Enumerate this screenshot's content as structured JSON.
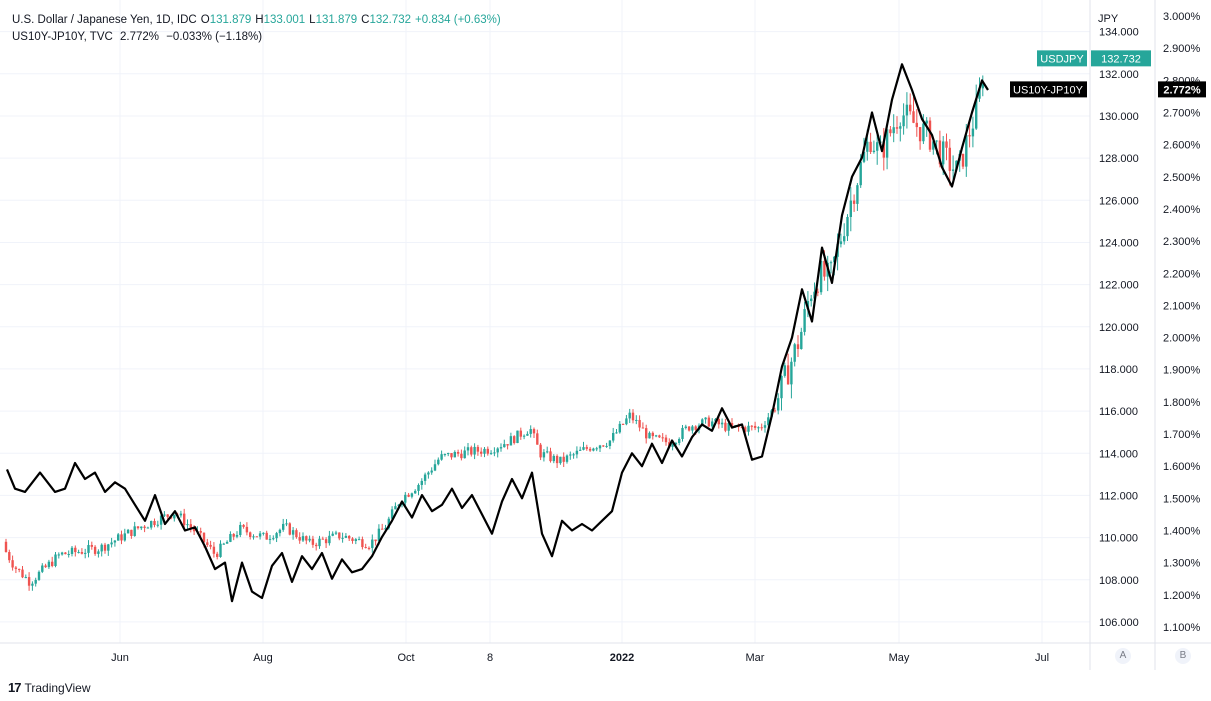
{
  "legend": {
    "usdjpy": {
      "title": "U.S. Dollar / Japanese Yen, 1D, IDC",
      "o_label": "O",
      "o": "131.879",
      "h_label": "H",
      "h": "133.001",
      "l_label": "L",
      "l": "131.879",
      "c_label": "C",
      "c": "132.732",
      "change": "+0.834 (+0.63%)"
    },
    "yield": {
      "title": "US10Y-JP10Y, TVC",
      "value": "2.772%",
      "change": "−0.033% (−1.18%)"
    }
  },
  "colors": {
    "up": "#26a69a",
    "down": "#ef5350",
    "line": "#000000",
    "grid": "#f0f3fa"
  },
  "footer": {
    "brand": "TradingView",
    "logo": "17"
  },
  "scale_buttons": [
    "A",
    "B"
  ],
  "chart_data": {
    "type": "candlestick+line",
    "x_ticks": [
      "Jun",
      "Aug",
      "Oct",
      "8",
      "2022",
      "Mar",
      "May",
      "Jul"
    ],
    "left_axis": {
      "unit": "JPY",
      "ticks": [
        "106.000",
        "108.000",
        "110.000",
        "112.000",
        "114.000",
        "116.000",
        "118.000",
        "120.000",
        "122.000",
        "124.000",
        "126.000",
        "128.000",
        "130.000",
        "132.000",
        "134.000"
      ],
      "range": [
        105,
        135.5
      ]
    },
    "right_axis": {
      "ticks": [
        "1.100%",
        "1.200%",
        "1.300%",
        "1.400%",
        "1.500%",
        "1.600%",
        "1.700%",
        "1.800%",
        "1.900%",
        "2.000%",
        "2.100%",
        "2.200%",
        "2.300%",
        "2.400%",
        "2.500%",
        "2.600%",
        "2.700%",
        "2.800%",
        "2.900%",
        "3.000%"
      ],
      "range": [
        1.05,
        3.05
      ]
    },
    "price_tags": [
      {
        "name": "USDJPY",
        "value": "132.732",
        "axis_value": 132.732,
        "color": "#26a69a"
      },
      {
        "name": "US10Y-JP10Y",
        "value": "2.772%",
        "axis_value": 2.772,
        "color": "#000000"
      }
    ],
    "series": [
      {
        "name": "USDJPY",
        "kind": "candles",
        "anchors": [
          [
            0,
            109.8
          ],
          [
            15,
            108.6
          ],
          [
            30,
            107.9
          ],
          [
            60,
            109.2
          ],
          [
            100,
            109.5
          ],
          [
            140,
            110.5
          ],
          [
            175,
            111.2
          ],
          [
            195,
            110.3
          ],
          [
            215,
            109.2
          ],
          [
            240,
            110.4
          ],
          [
            265,
            110.0
          ],
          [
            285,
            110.5
          ],
          [
            310,
            109.7
          ],
          [
            340,
            110.1
          ],
          [
            370,
            109.7
          ],
          [
            385,
            110.5
          ],
          [
            400,
            111.8
          ],
          [
            420,
            112.6
          ],
          [
            440,
            113.8
          ],
          [
            460,
            114.0
          ],
          [
            490,
            114.2
          ],
          [
            510,
            114.6
          ],
          [
            530,
            115.2
          ],
          [
            540,
            114.0
          ],
          [
            560,
            113.6
          ],
          [
            590,
            114.3
          ],
          [
            610,
            114.6
          ],
          [
            630,
            115.8
          ],
          [
            650,
            114.7
          ],
          [
            670,
            114.5
          ],
          [
            690,
            115.3
          ],
          [
            710,
            115.5
          ],
          [
            730,
            115.2
          ],
          [
            760,
            115.2
          ],
          [
            775,
            116.2
          ],
          [
            790,
            118.2
          ],
          [
            800,
            119.5
          ],
          [
            810,
            121.6
          ],
          [
            820,
            122.5
          ],
          [
            830,
            122.3
          ],
          [
            845,
            125.0
          ],
          [
            860,
            127.5
          ],
          [
            870,
            129.0
          ],
          [
            880,
            128.2
          ],
          [
            890,
            129.2
          ],
          [
            900,
            130.2
          ],
          [
            915,
            129.6
          ],
          [
            930,
            129.0
          ],
          [
            945,
            128.0
          ],
          [
            958,
            127.3
          ],
          [
            968,
            129.0
          ],
          [
            978,
            130.5
          ],
          [
            985,
            132.7
          ]
        ]
      },
      {
        "name": "US10Y-JP10Y",
        "kind": "line",
        "points": [
          [
            7,
            1.59
          ],
          [
            15,
            1.53
          ],
          [
            25,
            1.52
          ],
          [
            40,
            1.58
          ],
          [
            55,
            1.52
          ],
          [
            65,
            1.53
          ],
          [
            75,
            1.61
          ],
          [
            85,
            1.56
          ],
          [
            95,
            1.58
          ],
          [
            105,
            1.52
          ],
          [
            115,
            1.55
          ],
          [
            125,
            1.53
          ],
          [
            135,
            1.48
          ],
          [
            145,
            1.43
          ],
          [
            155,
            1.51
          ],
          [
            165,
            1.42
          ],
          [
            175,
            1.46
          ],
          [
            185,
            1.4
          ],
          [
            195,
            1.41
          ],
          [
            205,
            1.35
          ],
          [
            215,
            1.28
          ],
          [
            225,
            1.3
          ],
          [
            232,
            1.18
          ],
          [
            242,
            1.3
          ],
          [
            252,
            1.21
          ],
          [
            262,
            1.19
          ],
          [
            272,
            1.29
          ],
          [
            282,
            1.33
          ],
          [
            292,
            1.24
          ],
          [
            302,
            1.32
          ],
          [
            312,
            1.28
          ],
          [
            322,
            1.33
          ],
          [
            332,
            1.25
          ],
          [
            342,
            1.31
          ],
          [
            352,
            1.27
          ],
          [
            362,
            1.28
          ],
          [
            372,
            1.32
          ],
          [
            382,
            1.38
          ],
          [
            392,
            1.43
          ],
          [
            402,
            1.49
          ],
          [
            412,
            1.44
          ],
          [
            422,
            1.51
          ],
          [
            432,
            1.46
          ],
          [
            442,
            1.48
          ],
          [
            452,
            1.53
          ],
          [
            462,
            1.47
          ],
          [
            472,
            1.51
          ],
          [
            482,
            1.45
          ],
          [
            492,
            1.39
          ],
          [
            502,
            1.49
          ],
          [
            512,
            1.56
          ],
          [
            522,
            1.5
          ],
          [
            532,
            1.58
          ],
          [
            542,
            1.39
          ],
          [
            552,
            1.32
          ],
          [
            562,
            1.43
          ],
          [
            572,
            1.4
          ],
          [
            582,
            1.42
          ],
          [
            592,
            1.4
          ],
          [
            602,
            1.43
          ],
          [
            612,
            1.46
          ],
          [
            622,
            1.58
          ],
          [
            632,
            1.64
          ],
          [
            642,
            1.6
          ],
          [
            652,
            1.67
          ],
          [
            662,
            1.61
          ],
          [
            672,
            1.68
          ],
          [
            682,
            1.63
          ],
          [
            692,
            1.69
          ],
          [
            702,
            1.73
          ],
          [
            712,
            1.71
          ],
          [
            722,
            1.78
          ],
          [
            732,
            1.72
          ],
          [
            742,
            1.73
          ],
          [
            752,
            1.62
          ],
          [
            762,
            1.63
          ],
          [
            772,
            1.76
          ],
          [
            782,
            1.91
          ],
          [
            792,
            2.0
          ],
          [
            802,
            2.15
          ],
          [
            812,
            2.05
          ],
          [
            822,
            2.28
          ],
          [
            832,
            2.17
          ],
          [
            842,
            2.38
          ],
          [
            852,
            2.5
          ],
          [
            862,
            2.56
          ],
          [
            872,
            2.7
          ],
          [
            882,
            2.58
          ],
          [
            892,
            2.74
          ],
          [
            902,
            2.85
          ],
          [
            912,
            2.77
          ],
          [
            922,
            2.68
          ],
          [
            932,
            2.63
          ],
          [
            942,
            2.53
          ],
          [
            952,
            2.47
          ],
          [
            962,
            2.59
          ],
          [
            972,
            2.7
          ],
          [
            982,
            2.8
          ],
          [
            988,
            2.77
          ]
        ]
      }
    ]
  }
}
